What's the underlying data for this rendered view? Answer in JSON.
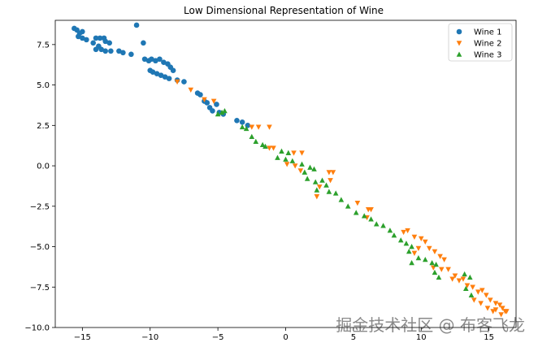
{
  "chart_data": {
    "type": "scatter",
    "title": "Low Dimensional Representation of Wine",
    "xlabel": "",
    "ylabel": "",
    "xlim": [
      -17,
      17
    ],
    "ylim": [
      -10,
      9
    ],
    "x_ticks": [
      -15,
      -10,
      -5,
      0,
      5,
      10,
      15
    ],
    "x_tick_labels": [
      "−15",
      "−10",
      "−5",
      "0",
      "5",
      "10",
      "15"
    ],
    "y_ticks": [
      7.5,
      5.0,
      2.5,
      0.0,
      -2.5,
      -5.0,
      -7.5,
      -10.0
    ],
    "y_tick_labels": [
      "7.5",
      "5.0",
      "2.5",
      "0.0",
      "−2.5",
      "−5.0",
      "−7.5",
      "−10.0"
    ],
    "grid": false,
    "legend_position": "top-right",
    "series": [
      {
        "name": "Wine 1",
        "color": "#1f77b4",
        "marker": "circle",
        "points": [
          [
            -15.6,
            8.5
          ],
          [
            -15.4,
            8.4
          ],
          [
            -15.2,
            8.2
          ],
          [
            -15.0,
            8.3
          ],
          [
            -15.3,
            8.0
          ],
          [
            -15.0,
            7.9
          ],
          [
            -14.7,
            7.8
          ],
          [
            -14.0,
            7.9
          ],
          [
            -13.7,
            7.9
          ],
          [
            -13.4,
            7.9
          ],
          [
            -13.3,
            7.7
          ],
          [
            -13.0,
            7.6
          ],
          [
            -13.8,
            7.4
          ],
          [
            -13.6,
            7.2
          ],
          [
            -13.3,
            7.1
          ],
          [
            -12.9,
            7.1
          ],
          [
            -14.2,
            7.6
          ],
          [
            -14.0,
            7.2
          ],
          [
            -12.3,
            7.1
          ],
          [
            -12.0,
            7.0
          ],
          [
            -11.4,
            6.9
          ],
          [
            -11.0,
            8.7
          ],
          [
            -10.5,
            7.6
          ],
          [
            -10.4,
            6.6
          ],
          [
            -10.1,
            6.5
          ],
          [
            -9.9,
            6.6
          ],
          [
            -9.6,
            6.5
          ],
          [
            -9.3,
            6.6
          ],
          [
            -9.0,
            6.4
          ],
          [
            -8.7,
            6.3
          ],
          [
            -8.5,
            6.1
          ],
          [
            -8.3,
            5.9
          ],
          [
            -10.0,
            5.9
          ],
          [
            -9.8,
            5.8
          ],
          [
            -9.5,
            5.7
          ],
          [
            -9.2,
            5.6
          ],
          [
            -8.9,
            5.5
          ],
          [
            -8.6,
            5.4
          ],
          [
            -8.0,
            5.3
          ],
          [
            -7.5,
            5.2
          ],
          [
            -6.5,
            4.5
          ],
          [
            -6.3,
            4.4
          ],
          [
            -6.0,
            4.0
          ],
          [
            -5.8,
            3.9
          ],
          [
            -5.6,
            3.6
          ],
          [
            -5.4,
            3.4
          ],
          [
            -5.1,
            3.8
          ],
          [
            -4.9,
            3.3
          ],
          [
            -4.6,
            3.2
          ],
          [
            -3.6,
            2.8
          ],
          [
            -3.2,
            2.7
          ],
          [
            -2.8,
            2.5
          ]
        ]
      },
      {
        "name": "Wine 2",
        "color": "#ff7f0e",
        "marker": "triangle-down",
        "points": [
          [
            -8.0,
            5.2
          ],
          [
            -7.0,
            4.7
          ],
          [
            -6.0,
            4.1
          ],
          [
            -5.3,
            4.0
          ],
          [
            -2.5,
            2.4
          ],
          [
            -2.0,
            2.4
          ],
          [
            -1.2,
            2.4
          ],
          [
            -1.2,
            1.1
          ],
          [
            -0.9,
            1.1
          ],
          [
            0.6,
            0.8
          ],
          [
            1.2,
            0.8
          ],
          [
            0.1,
            0.1
          ],
          [
            0.7,
            0.0
          ],
          [
            1.1,
            -0.3
          ],
          [
            3.2,
            -0.4
          ],
          [
            3.5,
            -0.4
          ],
          [
            3.3,
            -0.9
          ],
          [
            2.5,
            -1.3
          ],
          [
            2.3,
            -1.9
          ],
          [
            5.3,
            -2.3
          ],
          [
            6.1,
            -2.7
          ],
          [
            6.3,
            -2.7
          ],
          [
            6.0,
            -3.2
          ],
          [
            8.7,
            -4.1
          ],
          [
            9.0,
            -4.0
          ],
          [
            9.5,
            -4.4
          ],
          [
            10.0,
            -4.5
          ],
          [
            10.3,
            -4.7
          ],
          [
            9.8,
            -5.1
          ],
          [
            9.5,
            -5.4
          ],
          [
            10.6,
            -5.1
          ],
          [
            11.0,
            -5.3
          ],
          [
            11.4,
            -5.6
          ],
          [
            11.7,
            -5.8
          ],
          [
            10.9,
            -6.3
          ],
          [
            11.5,
            -6.4
          ],
          [
            12.0,
            -6.4
          ],
          [
            12.5,
            -6.8
          ],
          [
            12.8,
            -7.1
          ],
          [
            13.1,
            -7.0
          ],
          [
            13.4,
            -7.4
          ],
          [
            13.8,
            -7.5
          ],
          [
            14.2,
            -7.8
          ],
          [
            14.5,
            -7.7
          ],
          [
            14.8,
            -8.0
          ],
          [
            15.1,
            -8.3
          ],
          [
            15.5,
            -8.5
          ],
          [
            15.8,
            -8.6
          ],
          [
            16.0,
            -8.8
          ],
          [
            16.2,
            -9.0
          ],
          [
            13.9,
            -8.3
          ],
          [
            14.4,
            -8.5
          ],
          [
            14.9,
            -8.8
          ],
          [
            15.3,
            -9.0
          ],
          [
            15.5,
            -8.9
          ],
          [
            15.9,
            -9.2
          ],
          [
            16.3,
            -9.0
          ],
          [
            12.3,
            -7.0
          ]
        ]
      },
      {
        "name": "Wine 3",
        "color": "#2ca02c",
        "marker": "triangle-up",
        "points": [
          [
            -5.0,
            3.2
          ],
          [
            -4.7,
            3.3
          ],
          [
            -4.5,
            3.4
          ],
          [
            -3.2,
            2.4
          ],
          [
            -2.9,
            2.3
          ],
          [
            -2.5,
            1.8
          ],
          [
            -2.2,
            1.5
          ],
          [
            -1.7,
            1.3
          ],
          [
            -1.5,
            1.2
          ],
          [
            -0.3,
            0.9
          ],
          [
            0.2,
            0.8
          ],
          [
            -0.6,
            0.5
          ],
          [
            0.0,
            0.4
          ],
          [
            0.5,
            0.3
          ],
          [
            1.2,
            0.1
          ],
          [
            1.8,
            -0.1
          ],
          [
            2.1,
            -0.2
          ],
          [
            1.4,
            -0.4
          ],
          [
            1.6,
            -0.8
          ],
          [
            2.2,
            -1.0
          ],
          [
            2.7,
            -0.9
          ],
          [
            3.0,
            -1.2
          ],
          [
            2.3,
            -1.5
          ],
          [
            3.2,
            -1.6
          ],
          [
            3.7,
            -1.7
          ],
          [
            4.1,
            -2.1
          ],
          [
            4.6,
            -2.5
          ],
          [
            5.2,
            -2.9
          ],
          [
            5.8,
            -3.1
          ],
          [
            6.3,
            -3.3
          ],
          [
            6.7,
            -3.6
          ],
          [
            7.2,
            -3.7
          ],
          [
            7.7,
            -4.0
          ],
          [
            8.0,
            -4.3
          ],
          [
            8.5,
            -4.6
          ],
          [
            8.9,
            -4.8
          ],
          [
            9.3,
            -5.0
          ],
          [
            9.1,
            -5.3
          ],
          [
            9.8,
            -5.7
          ],
          [
            10.3,
            -5.8
          ],
          [
            10.8,
            -6.0
          ],
          [
            11.1,
            -6.1
          ],
          [
            9.3,
            -6.0
          ],
          [
            11.0,
            -6.6
          ],
          [
            11.3,
            -6.9
          ],
          [
            13.2,
            -6.7
          ],
          [
            13.6,
            -6.9
          ],
          [
            13.3,
            -7.6
          ],
          [
            13.7,
            -8.0
          ]
        ]
      }
    ]
  },
  "watermark": "掘金技术社区 @ 布客飞龙"
}
